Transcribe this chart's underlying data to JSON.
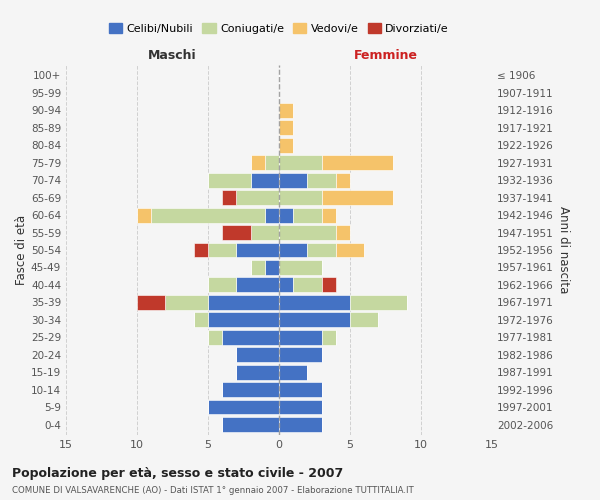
{
  "age_groups": [
    "0-4",
    "5-9",
    "10-14",
    "15-19",
    "20-24",
    "25-29",
    "30-34",
    "35-39",
    "40-44",
    "45-49",
    "50-54",
    "55-59",
    "60-64",
    "65-69",
    "70-74",
    "75-79",
    "80-84",
    "85-89",
    "90-94",
    "95-99",
    "100+"
  ],
  "birth_years": [
    "2002-2006",
    "1997-2001",
    "1992-1996",
    "1987-1991",
    "1982-1986",
    "1977-1981",
    "1972-1976",
    "1967-1971",
    "1962-1966",
    "1957-1961",
    "1952-1956",
    "1947-1951",
    "1942-1946",
    "1937-1941",
    "1932-1936",
    "1927-1931",
    "1922-1926",
    "1917-1921",
    "1912-1916",
    "1907-1911",
    "≤ 1906"
  ],
  "colors": {
    "celibi": "#4472C4",
    "coniugati": "#C5D8A0",
    "vedovi": "#F5C36A",
    "divorziati": "#C0392B"
  },
  "maschi": {
    "celibi": [
      4,
      5,
      4,
      3,
      3,
      4,
      5,
      5,
      3,
      1,
      3,
      0,
      1,
      0,
      2,
      0,
      0,
      0,
      0,
      0,
      0
    ],
    "coniugati": [
      0,
      0,
      0,
      0,
      0,
      1,
      1,
      3,
      2,
      1,
      2,
      2,
      8,
      3,
      3,
      1,
      0,
      0,
      0,
      0,
      0
    ],
    "vedovi": [
      0,
      0,
      0,
      0,
      0,
      0,
      0,
      0,
      0,
      0,
      0,
      0,
      1,
      0,
      0,
      1,
      0,
      0,
      0,
      0,
      0
    ],
    "divorziati": [
      0,
      0,
      0,
      0,
      0,
      0,
      0,
      2,
      0,
      0,
      1,
      2,
      0,
      1,
      0,
      0,
      0,
      0,
      0,
      0,
      0
    ]
  },
  "femmine": {
    "celibi": [
      3,
      3,
      3,
      2,
      3,
      3,
      5,
      5,
      1,
      0,
      2,
      0,
      1,
      0,
      2,
      0,
      0,
      0,
      0,
      0,
      0
    ],
    "coniugati": [
      0,
      0,
      0,
      0,
      0,
      1,
      2,
      4,
      2,
      3,
      2,
      4,
      2,
      3,
      2,
      3,
      0,
      0,
      0,
      0,
      0
    ],
    "vedovi": [
      0,
      0,
      0,
      0,
      0,
      0,
      0,
      0,
      0,
      0,
      2,
      1,
      1,
      5,
      1,
      5,
      1,
      1,
      1,
      0,
      0
    ],
    "divorziati": [
      0,
      0,
      0,
      0,
      0,
      0,
      0,
      0,
      1,
      0,
      0,
      0,
      0,
      0,
      0,
      0,
      0,
      0,
      0,
      0,
      0
    ]
  },
  "title": "Popolazione per età, sesso e stato civile - 2007",
  "subtitle": "COMUNE DI VALSAVARENCHE (AO) - Dati ISTAT 1° gennaio 2007 - Elaborazione TUTTITALIA.IT",
  "xlabel_left": "Maschi",
  "xlabel_right": "Femmine",
  "ylabel_left": "Fasce di età",
  "ylabel_right": "Anni di nascita",
  "xlim": 15,
  "legend_labels": [
    "Celibi/Nubili",
    "Coniugati/e",
    "Vedovi/e",
    "Divorziati/e"
  ],
  "background_color": "#f5f5f5",
  "grid_color": "#cccccc"
}
